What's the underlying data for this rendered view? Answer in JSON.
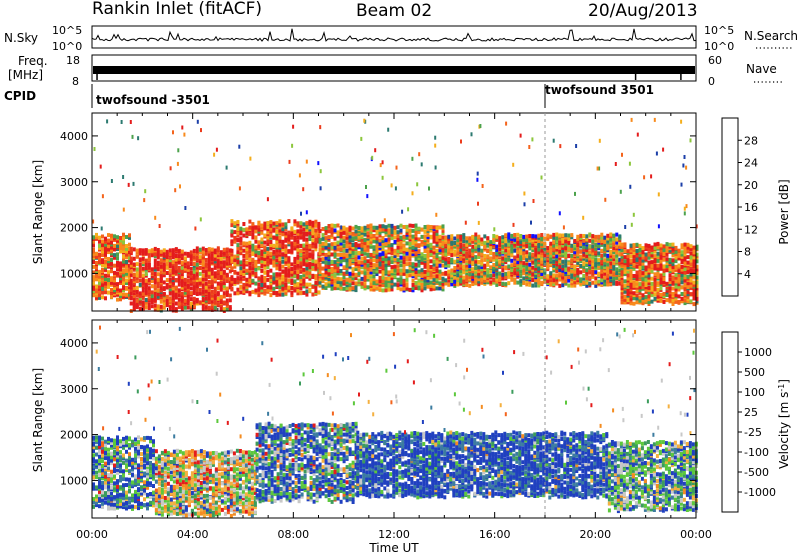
{
  "header": {
    "station": "Rankin Inlet (fitACF)",
    "beam": "Beam 02",
    "date": "20/Aug/2013"
  },
  "noise_panel": {
    "left_label": "N.Sky",
    "right_label": "N.Search",
    "left_ticks": [
      "10^5",
      "10^0"
    ],
    "right_ticks": [
      "10^5",
      "10^0"
    ]
  },
  "freq_panel": {
    "left_label_line1": "Freq.",
    "left_label_line2": "[MHz]",
    "left_ticks": [
      "18",
      "8"
    ],
    "right_label": "Nave",
    "right_ticks": [
      "60",
      "0"
    ]
  },
  "cpid": {
    "label": "CPID",
    "segments": [
      {
        "name": "twofsound -3501",
        "start_hour": 0
      },
      {
        "name": "twofsound 3501",
        "start_hour": 18
      }
    ]
  },
  "icons": {
    "dotted-legend": "dotted-line-icon"
  },
  "chart_data": [
    {
      "type": "heatmap",
      "panel": "power",
      "ylabel": "Slant Range [km]",
      "xlabel": "",
      "ylim": [
        180,
        4500
      ],
      "y_ticks": [
        "1000",
        "2000",
        "3000",
        "4000"
      ],
      "x_ticks": [
        "00:00",
        "04:00",
        "08:00",
        "12:00",
        "16:00",
        "20:00",
        "00:00"
      ],
      "colorbar": {
        "label": "Power [dB]",
        "ticks": [
          "4",
          "8",
          "12",
          "16",
          "20",
          "24",
          "28"
        ],
        "colors": [
          "#1010ff",
          "#1c3fa8",
          "#2c7a70",
          "#4ca24c",
          "#8cc63c",
          "#f4ae1c",
          "#f88a1c",
          "#f4641c",
          "#ec3c1c",
          "#e41c1c"
        ]
      },
      "bands": [
        {
          "t0": 0.0,
          "t1": 1.5,
          "r0": 500,
          "r1": 1900,
          "mix": [
            0.0,
            0.15,
            0.5,
            0.35
          ]
        },
        {
          "t0": 1.5,
          "t1": 5.5,
          "r0": 250,
          "r1": 1600,
          "mix": [
            0.0,
            0.05,
            0.25,
            0.7
          ]
        },
        {
          "t0": 5.5,
          "t1": 9.0,
          "r0": 600,
          "r1": 2200,
          "mix": [
            0.0,
            0.1,
            0.35,
            0.55
          ]
        },
        {
          "t0": 9.0,
          "t1": 14.0,
          "r0": 700,
          "r1": 2100,
          "mix": [
            0.05,
            0.3,
            0.45,
            0.2
          ]
        },
        {
          "t0": 14.0,
          "t1": 21.0,
          "r0": 800,
          "r1": 1900,
          "mix": [
            0.05,
            0.35,
            0.4,
            0.2
          ]
        },
        {
          "t0": 21.0,
          "t1": 24.0,
          "r0": 400,
          "r1": 1700,
          "mix": [
            0.0,
            0.2,
            0.4,
            0.4
          ]
        }
      ]
    },
    {
      "type": "heatmap",
      "panel": "velocity",
      "ylabel": "Slant Range [km]",
      "xlabel": "Time UT",
      "ylim": [
        180,
        4500
      ],
      "y_ticks": [
        "1000",
        "2000",
        "3000",
        "4000"
      ],
      "x_ticks": [
        "00:00",
        "04:00",
        "08:00",
        "12:00",
        "16:00",
        "20:00",
        "00:00"
      ],
      "colorbar": {
        "label": "Velocity [m s",
        "label_sup": "-1",
        "label_end": "]",
        "ticks": [
          "1000",
          "500",
          "100",
          "25",
          "-25",
          "-100",
          "-500",
          "-1000"
        ],
        "colors": [
          "#2040c0",
          "#3c7ca0",
          "#3c9c5c",
          "#5cc83c",
          "#c8c8c8",
          "#c8c8c8",
          "#f4b040",
          "#f48c20",
          "#f4641c",
          "#e41c1c"
        ]
      },
      "bands": [
        {
          "t0": 0.0,
          "t1": 2.5,
          "r0": 450,
          "r1": 2000,
          "mix": [
            0.55,
            0.3,
            0.1,
            0.05
          ]
        },
        {
          "t0": 2.5,
          "t1": 6.5,
          "r0": 300,
          "r1": 1700,
          "mix": [
            0.1,
            0.35,
            0.45,
            0.1
          ]
        },
        {
          "t0": 6.5,
          "t1": 10.5,
          "r0": 600,
          "r1": 2300,
          "mix": [
            0.55,
            0.3,
            0.1,
            0.05
          ]
        },
        {
          "t0": 10.5,
          "t1": 20.5,
          "r0": 700,
          "r1": 2100,
          "mix": [
            0.85,
            0.1,
            0.05,
            0.0
          ]
        },
        {
          "t0": 20.5,
          "t1": 24.0,
          "r0": 400,
          "r1": 1900,
          "mix": [
            0.35,
            0.5,
            0.15,
            0.0
          ]
        }
      ]
    }
  ]
}
